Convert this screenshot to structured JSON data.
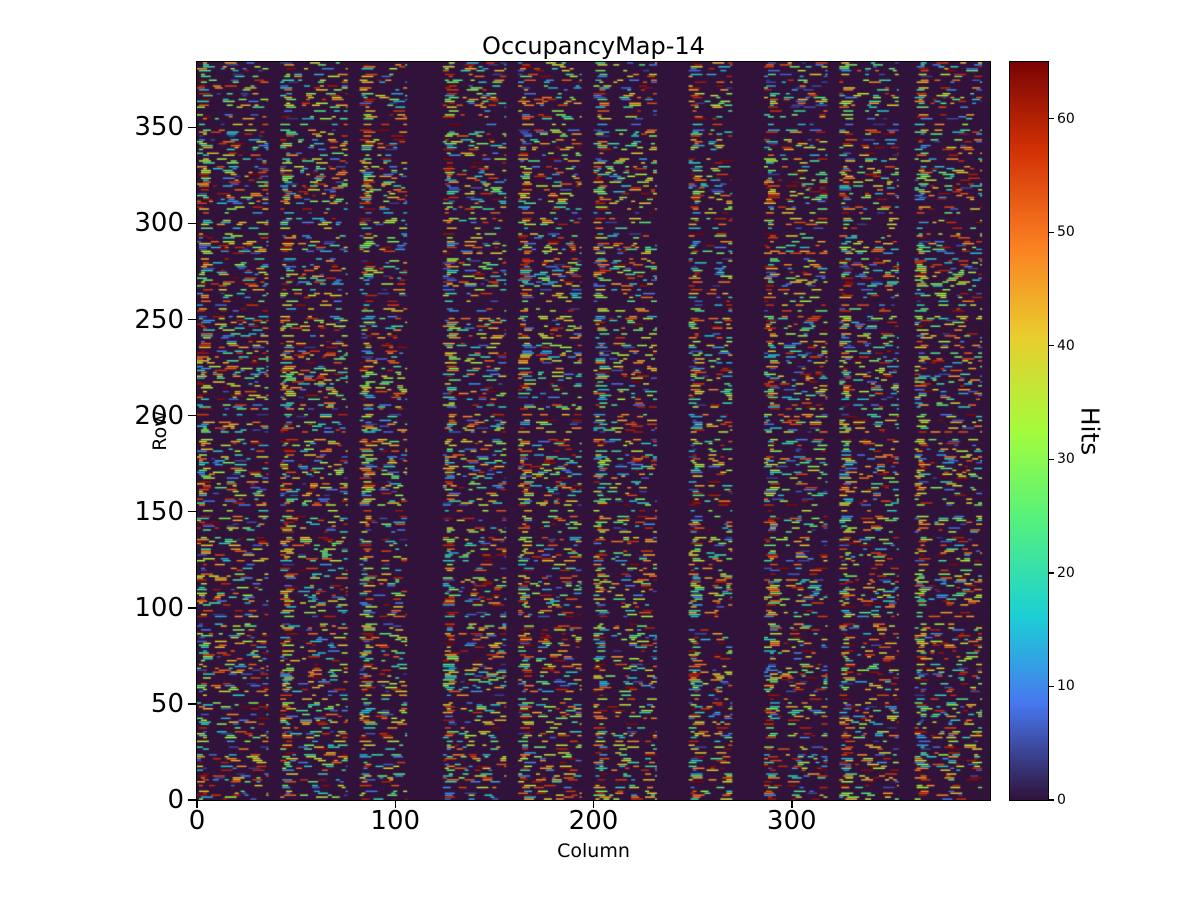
{
  "title": "OccupancyMap-14",
  "axes": {
    "xlabel": "Column",
    "ylabel": "Row",
    "x_ticks": [
      0,
      100,
      200,
      300
    ],
    "y_ticks": [
      0,
      50,
      100,
      150,
      200,
      250,
      300,
      350
    ],
    "x_range": [
      0,
      400
    ],
    "y_range": [
      0,
      384
    ]
  },
  "colorbar": {
    "label": "Hits",
    "ticks": [
      0,
      10,
      20,
      30,
      40,
      50,
      60
    ],
    "vmin": 0,
    "vmax": 65
  },
  "chart_data": {
    "type": "heatmap",
    "title": "OccupancyMap-14",
    "xlabel": "Column",
    "ylabel": "Row",
    "colorbar_label": "Hits",
    "x_range": [
      0,
      400
    ],
    "y_range": [
      0,
      384
    ],
    "value_range": [
      0,
      65
    ],
    "colormap": "turbo",
    "background_value_color": "#30123b",
    "colormap_stops": [
      [
        0.0,
        "#30123b"
      ],
      [
        0.13,
        "#4777ef"
      ],
      [
        0.25,
        "#1bd0d5"
      ],
      [
        0.38,
        "#55f17c"
      ],
      [
        0.5,
        "#a4fc3c"
      ],
      [
        0.63,
        "#eacb2d"
      ],
      [
        0.75,
        "#fb8022"
      ],
      [
        0.88,
        "#d23105"
      ],
      [
        1.0,
        "#7a0403"
      ]
    ],
    "column_bands": [
      [
        0,
        36
      ],
      [
        42,
        76
      ],
      [
        82,
        106
      ],
      [
        124,
        156
      ],
      [
        162,
        194
      ],
      [
        200,
        232
      ],
      [
        248,
        270
      ],
      [
        286,
        318
      ],
      [
        324,
        354
      ],
      [
        362,
        396
      ]
    ],
    "pattern": {
      "description": "Sparse random hit dashes on dark background, arranged in vertical column bands separated by empty gaps; wider empty gaps near columns 106-124 and 270-286. Hit values span roughly 3-65.",
      "seed": 14,
      "row_active_prob": 0.8,
      "band_skip_prob": 0.12,
      "dash_len_min": 2,
      "dash_len_max": 6,
      "gap_min": 2,
      "gap_max": 12,
      "value_min": 3,
      "value_max": 65
    }
  }
}
